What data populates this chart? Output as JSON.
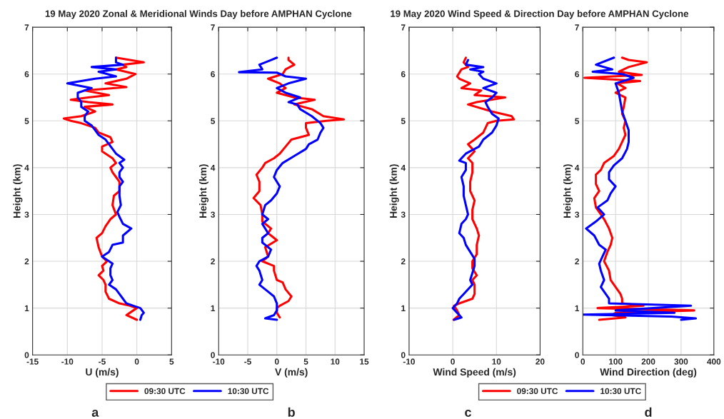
{
  "chart_data": [
    {
      "type": "line",
      "title": "19 May 2020 Zonal & Meridional Winds Day before AMPHAN Cyclone",
      "xlabel": "U (m/s)",
      "ylabel": "Height (km)",
      "annotations": [
        "a"
      ],
      "xlim": [
        -15,
        5
      ],
      "xticks": [
        -15,
        -10,
        -5,
        0,
        5
      ],
      "ylim": [
        0,
        7
      ],
      "yticks": [
        0,
        1,
        2,
        3,
        4,
        5,
        6,
        7
      ],
      "grid": true,
      "legend": "bottom",
      "series": [
        {
          "name": "09:30 UTC",
          "color": "#ff0000",
          "x": [
            0,
            -1.5,
            -0.5,
            0,
            -1,
            -2.5,
            -4,
            -4.5,
            -4.5,
            -4.8,
            -5.5,
            -4.8,
            -5,
            -4.3,
            -5,
            -5.5,
            -5.8,
            -5,
            -4.5,
            -3.8,
            -3,
            -3.5,
            -3.3,
            -2.5,
            -2.5,
            -3,
            -3.5,
            -3.8,
            -3,
            -3.5,
            -5,
            -5,
            -3.5,
            -3.8,
            -5.5,
            -6,
            -8,
            -9.5,
            -10.5,
            -8,
            -6,
            -7.5,
            -3.5,
            -7,
            -9.5,
            -7,
            -4,
            -7.5,
            -1.5,
            -4.5,
            -1.5,
            -0.2,
            -3,
            -1.5,
            -2,
            1,
            -1,
            -3
          ],
          "values": [
            0.75,
            0.85,
            0.95,
            1.0,
            1.05,
            1.1,
            1.2,
            1.35,
            1.5,
            1.6,
            1.7,
            1.8,
            1.9,
            2.0,
            2.1,
            2.3,
            2.5,
            2.6,
            2.75,
            2.9,
            3.0,
            3.2,
            3.4,
            3.5,
            3.7,
            3.8,
            3.9,
            4.0,
            4.1,
            4.2,
            4.35,
            4.45,
            4.55,
            4.65,
            4.75,
            4.85,
            4.95,
            5.0,
            5.05,
            5.1,
            5.2,
            5.3,
            5.35,
            5.4,
            5.45,
            5.5,
            5.55,
            5.65,
            5.72,
            5.8,
            5.9,
            6.0,
            6.1,
            6.15,
            6.2,
            6.25,
            6.3,
            6.35
          ]
        },
        {
          "name": "10:30 UTC",
          "color": "#0000ff",
          "x": [
            0.5,
            0.7,
            1,
            0.5,
            -0.5,
            -1.5,
            -2,
            -2.5,
            -3,
            -4,
            -3.5,
            -3.8,
            -3.8,
            -3.5,
            -5,
            -4,
            -3.5,
            -2,
            -2,
            -0.8,
            -2,
            -2.5,
            -2.8,
            -2.3,
            -2.5,
            -2.5,
            -2,
            -2.5,
            -2.5,
            -2,
            -2.5,
            -1.8,
            -3,
            -3.5,
            -4,
            -4.5,
            -5.5,
            -6,
            -6.5,
            -7.5,
            -7.5,
            -7,
            -8,
            -8,
            -8.5,
            -8.5,
            -6.5,
            -10,
            -6,
            -3,
            -5.5,
            -3,
            -6.5,
            -2,
            -3,
            -3
          ],
          "values": [
            0.75,
            0.85,
            0.9,
            1.0,
            1.05,
            1.1,
            1.2,
            1.3,
            1.4,
            1.5,
            1.6,
            1.7,
            1.85,
            1.95,
            2.1,
            2.2,
            2.35,
            2.4,
            2.55,
            2.7,
            2.8,
            2.95,
            3.05,
            3.2,
            3.4,
            3.6,
            3.7,
            3.8,
            3.9,
            4.0,
            4.1,
            4.17,
            4.3,
            4.4,
            4.5,
            4.6,
            4.7,
            4.8,
            4.9,
            5.0,
            5.1,
            5.2,
            5.3,
            5.4,
            5.5,
            5.6,
            5.7,
            5.8,
            5.9,
            5.95,
            6.05,
            6.1,
            6.15,
            6.2,
            6.25,
            6.35
          ]
        }
      ]
    },
    {
      "type": "line",
      "xlabel": "V (m/s)",
      "ylabel": "Height (km)",
      "annotations": [
        "b"
      ],
      "xlim": [
        -10,
        15
      ],
      "xticks": [
        -10,
        -5,
        0,
        5,
        10,
        15
      ],
      "ylim": [
        0,
        7
      ],
      "yticks": [
        0,
        1,
        2,
        3,
        4,
        5,
        6,
        7
      ],
      "grid": true,
      "series": [
        {
          "color": "#ff0000",
          "x": [
            0.5,
            0,
            0,
            0.5,
            2,
            2.5,
            1.5,
            1,
            0,
            -0.5,
            -0.5,
            -2.5,
            -1.5,
            -2,
            0,
            -1.5,
            -1,
            -2.5,
            -2.5,
            -2.8,
            -4,
            -3,
            -3,
            -3.5,
            -2.5,
            -2,
            -0.5,
            0.5,
            1.5,
            2.5,
            5.5,
            5,
            5,
            8.5,
            11.5,
            8,
            6,
            3,
            6.5,
            3,
            0,
            1.5,
            0.5,
            -1.5,
            1,
            1.5,
            3,
            2,
            2
          ],
          "values": [
            0.8,
            0.9,
            1.0,
            1.05,
            1.15,
            1.25,
            1.4,
            1.55,
            1.6,
            1.8,
            1.9,
            2.0,
            2.1,
            2.3,
            2.45,
            2.6,
            2.7,
            2.85,
            3.0,
            3.2,
            3.35,
            3.5,
            3.7,
            3.85,
            4.0,
            4.1,
            4.2,
            4.3,
            4.45,
            4.6,
            4.7,
            4.85,
            4.95,
            5.0,
            5.03,
            5.1,
            5.25,
            5.35,
            5.45,
            5.5,
            5.6,
            5.7,
            5.8,
            5.9,
            6.0,
            6.1,
            6.2,
            6.3,
            6.35
          ]
        },
        {
          "color": "#0000ff",
          "x": [
            0,
            -2,
            -0.5,
            0,
            0,
            -0.5,
            -1.5,
            -3,
            -2.5,
            -3,
            -3.5,
            -3,
            -1.5,
            -1,
            -2.5,
            -2.5,
            -1.5,
            -2.5,
            -1.5,
            -2.5,
            -2,
            -1,
            0,
            0.5,
            -0.5,
            0,
            1,
            3,
            5,
            5.5,
            7,
            7.5,
            8,
            7.5,
            6,
            4,
            3.5,
            2,
            4,
            1.5,
            0,
            2,
            5,
            1.5,
            0,
            -6.5,
            -2.5,
            -3,
            -1,
            0
          ],
          "values": [
            0.75,
            0.78,
            0.85,
            0.95,
            1.1,
            1.25,
            1.35,
            1.5,
            1.6,
            1.8,
            1.9,
            2.0,
            2.1,
            2.25,
            2.4,
            2.5,
            2.6,
            2.8,
            2.9,
            3.0,
            3.2,
            3.3,
            3.45,
            3.6,
            3.8,
            3.95,
            4.1,
            4.25,
            4.4,
            4.5,
            4.6,
            4.75,
            4.85,
            4.95,
            5.1,
            5.25,
            5.35,
            5.4,
            5.5,
            5.6,
            5.7,
            5.8,
            5.9,
            5.95,
            6.03,
            6.04,
            6.1,
            6.2,
            6.3,
            6.35
          ]
        }
      ]
    },
    {
      "type": "line",
      "title": "19 May 2020 Wind Speed & Direction Day before AMPHAN Cyclone",
      "xlabel": "Wind Speed (m/s)",
      "ylabel": "Height (km)",
      "annotations": [
        "c"
      ],
      "xlim": [
        -10,
        20
      ],
      "xticks": [
        -10,
        0,
        10,
        20
      ],
      "ylim": [
        0,
        7
      ],
      "yticks": [
        0,
        1,
        2,
        3,
        4,
        5,
        6,
        7
      ],
      "grid": true,
      "legend": "bottom",
      "series": [
        {
          "name": "09:30 UTC",
          "color": "#ff0000",
          "x": [
            0.2,
            1.5,
            1,
            0.3,
            1.5,
            4.5,
            5,
            5,
            4.5,
            5.5,
            4.5,
            4.5,
            5.5,
            5.5,
            6,
            5.5,
            4.5,
            4.5,
            5,
            4,
            4,
            4.5,
            4.5,
            3.5,
            5,
            4,
            3.5,
            5,
            7,
            8,
            10,
            14,
            13.5,
            9,
            3.5,
            5.5,
            12,
            5,
            6.5,
            2,
            4,
            1.5,
            1,
            2,
            3.5,
            2.5,
            3
          ],
          "values": [
            0.75,
            0.85,
            0.95,
            1.05,
            1.1,
            1.2,
            1.3,
            1.5,
            1.6,
            1.7,
            1.85,
            2.0,
            2.15,
            2.35,
            2.55,
            2.7,
            2.9,
            3.1,
            3.3,
            3.5,
            3.7,
            3.9,
            4.1,
            4.2,
            4.35,
            4.45,
            4.5,
            4.6,
            4.75,
            4.95,
            5.0,
            5.03,
            5.1,
            5.2,
            5.35,
            5.4,
            5.5,
            5.55,
            5.65,
            5.7,
            5.8,
            5.9,
            5.95,
            6.1,
            6.15,
            6.25,
            6.35
          ]
        },
        {
          "name": "10:30 UTC",
          "color": "#0000ff",
          "x": [
            0.3,
            2,
            1,
            0,
            1,
            1.5,
            2.5,
            4.5,
            4,
            4.5,
            5,
            5,
            4,
            3,
            2.5,
            1.5,
            2,
            3,
            3.5,
            3,
            2.5,
            2.5,
            2,
            3,
            3,
            1.5,
            3,
            6,
            7,
            9,
            10,
            10.5,
            9,
            8,
            7.5,
            9,
            10,
            7,
            10,
            7,
            6,
            7,
            4,
            7,
            3,
            3.5
          ],
          "values": [
            0.75,
            0.8,
            0.9,
            1.0,
            1.1,
            1.2,
            1.3,
            1.5,
            1.6,
            1.75,
            1.9,
            2.05,
            2.2,
            2.35,
            2.5,
            2.6,
            2.8,
            2.9,
            3.0,
            3.2,
            3.4,
            3.6,
            3.8,
            3.95,
            4.1,
            4.15,
            4.3,
            4.45,
            4.6,
            4.75,
            4.9,
            5.05,
            5.15,
            5.3,
            5.4,
            5.5,
            5.6,
            5.7,
            5.8,
            5.9,
            6.0,
            6.05,
            6.1,
            6.15,
            6.2,
            6.3
          ]
        }
      ]
    },
    {
      "type": "line",
      "xlabel": "Wind Direction (deg)",
      "ylabel": "Height (km)",
      "annotations": [
        "d"
      ],
      "xlim": [
        0,
        400
      ],
      "xticks": [
        0,
        100,
        200,
        300,
        400
      ],
      "ylim": [
        0,
        7
      ],
      "yticks": [
        0,
        1,
        2,
        3,
        4,
        5,
        6,
        7
      ],
      "grid": true,
      "series": [
        {
          "color": "#ff0000",
          "x": [
            50,
            130,
            90,
            100,
            340,
            45,
            185,
            120,
            120,
            115,
            100,
            85,
            80,
            65,
            75,
            85,
            90,
            80,
            65,
            55,
            40,
            35,
            50,
            40,
            40,
            55,
            65,
            95,
            110,
            120,
            130,
            125,
            130,
            120,
            125,
            130,
            100,
            130,
            105,
            175,
            5,
            180,
            110,
            140,
            195,
            140,
            120
          ],
          "values": [
            0.75,
            0.8,
            0.85,
            0.9,
            0.95,
            1.0,
            1.05,
            1.1,
            1.2,
            1.3,
            1.45,
            1.6,
            1.8,
            2.0,
            2.2,
            2.35,
            2.5,
            2.7,
            2.9,
            3.0,
            3.15,
            3.35,
            3.5,
            3.65,
            3.85,
            3.95,
            4.1,
            4.25,
            4.4,
            4.55,
            4.7,
            4.85,
            5.0,
            5.15,
            5.3,
            5.5,
            5.6,
            5.7,
            5.8,
            5.85,
            5.92,
            5.98,
            6.05,
            6.15,
            6.25,
            6.3,
            6.35
          ]
        },
        {
          "color": "#0000ff",
          "x": [
            300,
            345,
            270,
            0,
            280,
            100,
            330,
            80,
            80,
            70,
            55,
            65,
            55,
            50,
            60,
            70,
            50,
            35,
            10,
            40,
            65,
            45,
            75,
            85,
            100,
            80,
            80,
            95,
            120,
            135,
            140,
            140,
            130,
            120,
            115,
            110,
            100,
            155,
            120,
            30,
            90,
            40,
            95
          ],
          "values": [
            0.75,
            0.78,
            0.82,
            0.86,
            0.9,
            0.95,
            1.05,
            1.1,
            1.2,
            1.3,
            1.45,
            1.6,
            1.8,
            1.95,
            2.1,
            2.25,
            2.35,
            2.55,
            2.7,
            2.85,
            3.0,
            3.15,
            3.3,
            3.45,
            3.6,
            3.75,
            3.9,
            4.05,
            4.2,
            4.4,
            4.55,
            4.8,
            5.0,
            5.2,
            5.4,
            5.6,
            5.8,
            5.92,
            6.0,
            6.05,
            6.1,
            6.2,
            6.35
          ]
        }
      ]
    }
  ]
}
